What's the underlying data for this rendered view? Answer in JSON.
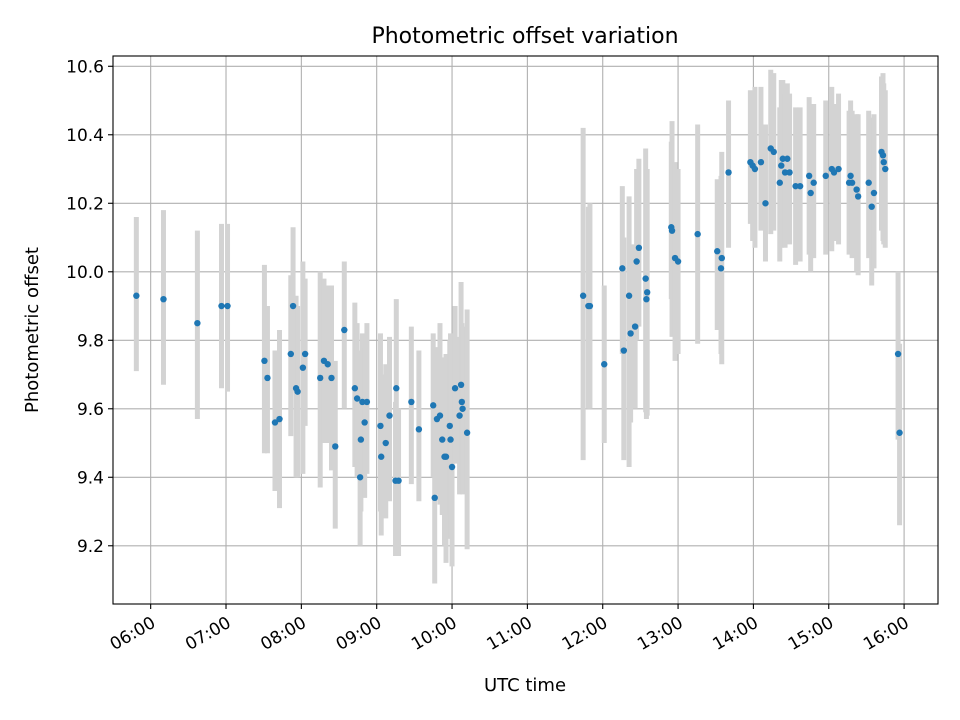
{
  "chart_data": {
    "type": "scatter",
    "title": "Photometric offset variation",
    "xlabel": "UTC time",
    "ylabel": "Photometric offset",
    "x_unit": "UTC hour",
    "xlim": [
      5.5,
      16.45
    ],
    "ylim": [
      9.03,
      10.63
    ],
    "xticks": [
      6,
      7,
      8,
      9,
      10,
      11,
      12,
      13,
      14,
      15,
      16
    ],
    "xtick_labels": [
      "06:00",
      "07:00",
      "08:00",
      "09:00",
      "10:00",
      "11:00",
      "12:00",
      "13:00",
      "14:00",
      "15:00",
      "16:00"
    ],
    "yticks": [
      9.2,
      9.4,
      9.6,
      9.8,
      10.0,
      10.2,
      10.4,
      10.6
    ],
    "ytick_labels": [
      "9.2",
      "9.4",
      "9.6",
      "9.8",
      "10.0",
      "10.2",
      "10.4",
      "10.6"
    ],
    "grid": true,
    "marker_color": "#1f77b4",
    "errorbar_color": "#d3d3d3",
    "series": [
      {
        "points": [
          [
            5.81,
            9.93,
            9.71,
            10.16
          ],
          [
            6.17,
            9.92,
            9.67,
            10.18
          ],
          [
            6.62,
            9.85,
            9.57,
            10.12
          ],
          [
            6.94,
            9.9,
            9.66,
            10.14
          ],
          [
            7.02,
            9.9,
            9.65,
            10.14
          ],
          [
            7.51,
            9.74,
            9.47,
            10.02
          ],
          [
            7.55,
            9.69,
            9.47,
            9.9
          ],
          [
            7.65,
            9.56,
            9.36,
            9.77
          ],
          [
            7.71,
            9.57,
            9.31,
            9.83
          ],
          [
            7.86,
            9.76,
            9.52,
            9.99
          ],
          [
            7.89,
            9.9,
            9.65,
            10.13
          ],
          [
            7.93,
            9.66,
            9.4,
            9.93
          ],
          [
            7.95,
            9.65,
            9.4,
            9.9
          ],
          [
            8.02,
            9.72,
            9.41,
            10.03
          ],
          [
            8.05,
            9.76,
            9.55,
            9.98
          ],
          [
            8.25,
            9.69,
            9.37,
            10.0
          ],
          [
            8.3,
            9.74,
            9.5,
            9.98
          ],
          [
            8.35,
            9.73,
            9.5,
            9.96
          ],
          [
            8.4,
            9.69,
            9.42,
            9.96
          ],
          [
            8.45,
            9.49,
            9.25,
            9.74
          ],
          [
            8.57,
            9.83,
            9.6,
            10.03
          ],
          [
            8.71,
            9.66,
            9.43,
            9.91
          ],
          [
            8.74,
            9.63,
            9.4,
            9.85
          ],
          [
            8.78,
            9.4,
            9.2,
            9.65
          ],
          [
            8.79,
            9.51,
            9.3,
            9.77
          ],
          [
            8.81,
            9.62,
            9.43,
            9.82
          ],
          [
            8.84,
            9.56,
            9.34,
            9.78
          ],
          [
            8.87,
            9.62,
            9.41,
            9.85
          ],
          [
            9.05,
            9.55,
            9.3,
            9.82
          ],
          [
            9.06,
            9.46,
            9.23,
            9.7
          ],
          [
            9.12,
            9.5,
            9.28,
            9.73
          ],
          [
            9.17,
            9.58,
            9.33,
            9.81
          ],
          [
            9.25,
            9.39,
            9.17,
            9.62
          ],
          [
            9.26,
            9.66,
            9.41,
            9.92
          ],
          [
            9.29,
            9.39,
            9.17,
            9.6
          ],
          [
            9.46,
            9.62,
            9.38,
            9.84
          ],
          [
            9.56,
            9.54,
            9.33,
            9.77
          ],
          [
            9.75,
            9.61,
            9.4,
            9.82
          ],
          [
            9.77,
            9.34,
            9.09,
            9.59
          ],
          [
            9.8,
            9.57,
            9.35,
            9.78
          ],
          [
            9.84,
            9.58,
            9.32,
            9.85
          ],
          [
            9.87,
            9.51,
            9.29,
            9.75
          ],
          [
            9.9,
            9.46,
            9.2,
            9.72
          ],
          [
            9.92,
            9.46,
            9.15,
            9.76
          ],
          [
            9.97,
            9.55,
            9.29,
            9.8
          ],
          [
            9.98,
            9.51,
            9.22,
            9.82
          ],
          [
            10.0,
            9.43,
            9.14,
            9.72
          ],
          [
            10.04,
            9.66,
            9.44,
            9.9
          ],
          [
            10.1,
            9.58,
            9.35,
            9.81
          ],
          [
            10.12,
            9.67,
            9.38,
            9.97
          ],
          [
            10.13,
            9.62,
            9.39,
            9.85
          ],
          [
            10.14,
            9.6,
            9.35,
            9.84
          ],
          [
            10.2,
            9.53,
            9.19,
            9.89
          ],
          [
            11.74,
            9.93,
            9.45,
            10.42
          ],
          [
            11.81,
            9.9,
            9.6,
            10.19
          ],
          [
            11.83,
            9.9,
            9.6,
            10.2
          ],
          [
            12.02,
            9.73,
            9.5,
            9.96
          ],
          [
            12.26,
            10.01,
            9.76,
            10.25
          ],
          [
            12.28,
            9.77,
            9.45,
            10.1
          ],
          [
            12.35,
            9.93,
            9.43,
            10.22
          ],
          [
            12.37,
            9.82,
            9.56,
            10.08
          ],
          [
            12.43,
            9.84,
            9.6,
            10.08
          ],
          [
            12.45,
            10.03,
            9.8,
            10.3
          ],
          [
            12.48,
            10.07,
            9.84,
            10.33
          ],
          [
            12.57,
            9.98,
            9.59,
            10.36
          ],
          [
            12.58,
            9.92,
            9.57,
            10.26
          ],
          [
            12.59,
            9.94,
            9.58,
            10.3
          ],
          [
            12.91,
            10.13,
            9.92,
            10.38
          ],
          [
            12.92,
            10.12,
            9.81,
            10.44
          ],
          [
            12.96,
            10.04,
            9.74,
            10.32
          ],
          [
            13.0,
            10.03,
            9.76,
            10.3
          ],
          [
            13.26,
            10.11,
            9.79,
            10.43
          ],
          [
            13.52,
            10.06,
            9.83,
            10.27
          ],
          [
            13.57,
            10.01,
            9.76,
            10.28
          ],
          [
            13.58,
            10.04,
            9.73,
            10.35
          ],
          [
            13.67,
            10.29,
            10.07,
            10.5
          ],
          [
            13.96,
            10.32,
            10.14,
            10.53
          ],
          [
            13.99,
            10.31,
            10.09,
            10.51
          ],
          [
            14.02,
            10.3,
            10.07,
            10.54
          ],
          [
            14.1,
            10.32,
            10.12,
            10.54
          ],
          [
            14.16,
            10.2,
            10.03,
            10.43
          ],
          [
            14.23,
            10.36,
            10.11,
            10.59
          ],
          [
            14.27,
            10.35,
            10.12,
            10.58
          ],
          [
            14.35,
            10.26,
            10.03,
            10.48
          ],
          [
            14.37,
            10.31,
            10.07,
            10.56
          ],
          [
            14.39,
            10.33,
            10.1,
            10.56
          ],
          [
            14.42,
            10.29,
            10.07,
            10.52
          ],
          [
            14.45,
            10.33,
            10.11,
            10.55
          ],
          [
            14.48,
            10.29,
            10.08,
            10.52
          ],
          [
            14.56,
            10.25,
            10.02,
            10.48
          ],
          [
            14.62,
            10.25,
            10.03,
            10.48
          ],
          [
            14.74,
            10.28,
            10.05,
            10.51
          ],
          [
            14.76,
            10.23,
            10.0,
            10.47
          ],
          [
            14.8,
            10.26,
            10.04,
            10.49
          ],
          [
            14.96,
            10.28,
            10.05,
            10.5
          ],
          [
            15.04,
            10.3,
            10.06,
            10.54
          ],
          [
            15.07,
            10.29,
            10.09,
            10.49
          ],
          [
            15.13,
            10.3,
            10.08,
            10.52
          ],
          [
            15.27,
            10.26,
            10.05,
            10.47
          ],
          [
            15.29,
            10.28,
            10.07,
            10.5
          ],
          [
            15.31,
            10.26,
            10.04,
            10.47
          ],
          [
            15.37,
            10.24,
            10.0,
            10.46
          ],
          [
            15.39,
            10.22,
            9.99,
            10.46
          ],
          [
            15.53,
            10.26,
            10.04,
            10.47
          ],
          [
            15.57,
            10.19,
            9.96,
            10.45
          ],
          [
            15.6,
            10.23,
            10.01,
            10.46
          ],
          [
            15.7,
            10.35,
            10.12,
            10.57
          ],
          [
            15.72,
            10.34,
            10.09,
            10.58
          ],
          [
            15.73,
            10.32,
            10.08,
            10.55
          ],
          [
            15.75,
            10.3,
            10.07,
            10.53
          ],
          [
            15.92,
            9.76,
            9.51,
            10.0
          ],
          [
            15.94,
            9.53,
            9.26,
            9.79
          ]
        ]
      }
    ]
  }
}
